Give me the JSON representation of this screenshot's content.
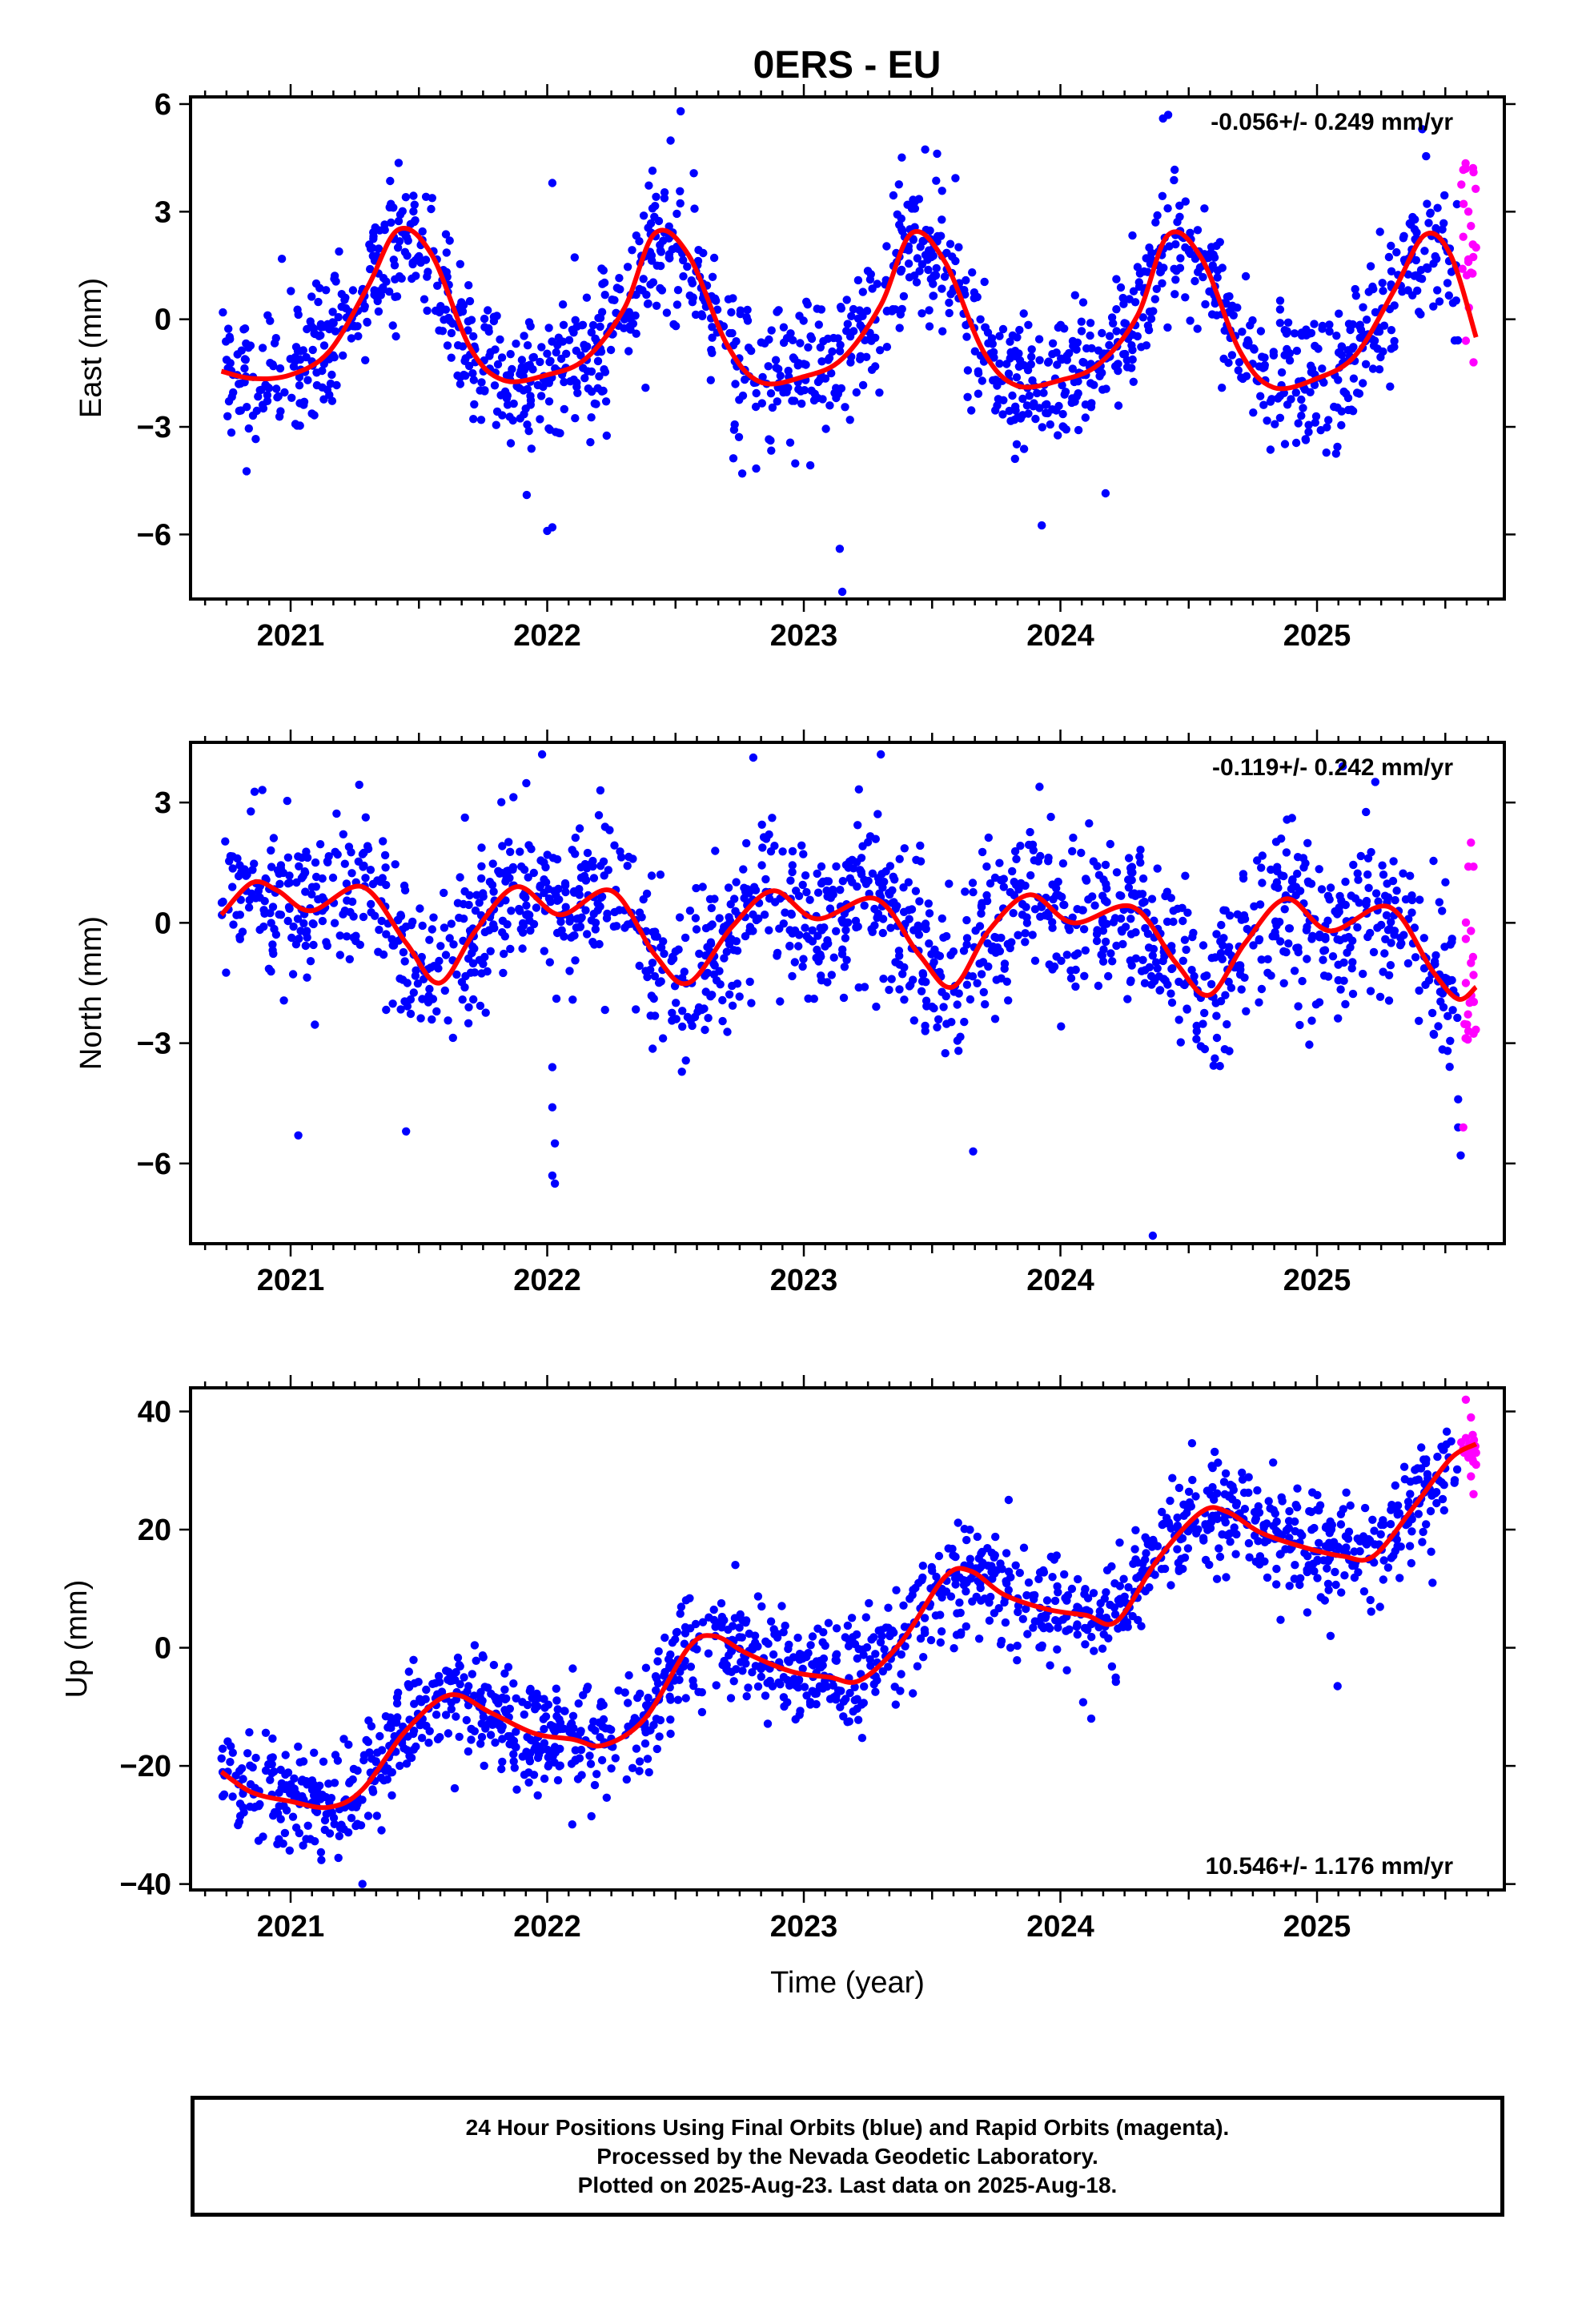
{
  "title": "0ERS - EU",
  "footer": {
    "line1": "24 Hour Positions Using Final Orbits (blue) and Rapid Orbits (magenta).",
    "line2": "Processed by the Nevada Geodetic Laboratory.",
    "line3": "Plotted on 2025-Aug-23. Last data on 2025-Aug-18."
  },
  "colors": {
    "final": "#0000ff",
    "rapid": "#ff00ff",
    "fit": "#ff0000",
    "axis": "#000000"
  },
  "chart_data": [
    {
      "type": "scatter",
      "title": "0ERS - EU",
      "ylabel": "East (mm)",
      "xlabel": "",
      "xlim": [
        2020.61,
        2025.73
      ],
      "ylim": [
        -7.8,
        6.2
      ],
      "xticks": [
        2021,
        2022,
        2023,
        2024,
        2025
      ],
      "yticks": [
        -6,
        -3,
        0,
        3,
        6
      ],
      "velocity_label": "-0.056+/- 0.249 mm/yr",
      "velocity_position": "top-right",
      "grid": false,
      "fit": {
        "name": "",
        "color": "#ff0000",
        "x": [
          2020.73,
          2020.85,
          2021.0,
          2021.15,
          2021.3,
          2021.42,
          2021.55,
          2021.7,
          2021.83,
          2022.0,
          2022.15,
          2022.3,
          2022.42,
          2022.55,
          2022.7,
          2022.83,
          2023.0,
          2023.15,
          2023.3,
          2023.42,
          2023.55,
          2023.7,
          2023.83,
          2024.0,
          2024.15,
          2024.3,
          2024.42,
          2024.55,
          2024.7,
          2024.83,
          2025.0,
          2025.15,
          2025.3,
          2025.42,
          2025.52,
          2025.62
        ],
        "y": [
          -1.45,
          -1.65,
          -1.55,
          -0.9,
          0.9,
          2.5,
          1.8,
          -0.8,
          -1.7,
          -1.55,
          -1.1,
          0.3,
          2.4,
          1.8,
          -0.7,
          -1.75,
          -1.6,
          -1.1,
          0.4,
          2.4,
          1.6,
          -0.9,
          -1.85,
          -1.7,
          -1.25,
          0.1,
          2.35,
          1.7,
          -0.9,
          -1.9,
          -1.65,
          -1.0,
          0.8,
          2.35,
          1.8,
          -0.5
        ]
      },
      "series": [
        {
          "name": "",
          "color": "#0000ff",
          "n": 1500,
          "x_range": [
            2020.73,
            2025.55
          ],
          "scatter_sd": 0.95,
          "outliers": [
            [
              2022.0,
              -5.9
            ],
            [
              2022.02,
              -5.8
            ],
            [
              2023.14,
              -6.4
            ],
            [
              2023.15,
              -7.6
            ],
            [
              2022.52,
              5.8
            ],
            [
              2024.4,
              5.6
            ],
            [
              2025.41,
              5.3
            ],
            [
              2022.02,
              3.8
            ],
            [
              2024.42,
              5.7
            ],
            [
              2021.92,
              -4.9
            ],
            [
              2022.76,
              -4.3
            ]
          ]
        },
        {
          "name": "",
          "color": "#ff00ff",
          "n": 24,
          "x_range": [
            2025.56,
            2025.62
          ],
          "points": [
            [
              2025.58,
              4.2
            ],
            [
              2025.61,
              4.1
            ],
            [
              2025.59,
              3.0
            ],
            [
              2025.6,
              2.6
            ],
            [
              2025.57,
              2.3
            ],
            [
              2025.62,
              2.0
            ],
            [
              2025.59,
              1.6
            ],
            [
              2025.6,
              1.3
            ],
            [
              2025.61,
              -1.2
            ],
            [
              2025.58,
              -0.6
            ]
          ]
        }
      ]
    },
    {
      "type": "scatter",
      "ylabel": "North (mm)",
      "xlabel": "",
      "xlim": [
        2020.61,
        2025.73
      ],
      "ylim": [
        -8.0,
        4.5
      ],
      "xticks": [
        2021,
        2022,
        2023,
        2024,
        2025
      ],
      "yticks": [
        -6,
        -3,
        0,
        3
      ],
      "velocity_label": "-0.119+/- 0.242 mm/yr",
      "velocity_position": "top-right",
      "grid": false,
      "fit": {
        "name": "",
        "color": "#ff0000",
        "x": [
          2020.73,
          2020.85,
          2020.95,
          2021.08,
          2021.28,
          2021.45,
          2021.58,
          2021.72,
          2021.88,
          2022.05,
          2022.25,
          2022.42,
          2022.55,
          2022.72,
          2022.88,
          2023.05,
          2023.28,
          2023.45,
          2023.58,
          2023.72,
          2023.88,
          2024.05,
          2024.28,
          2024.45,
          2024.58,
          2024.72,
          2024.88,
          2025.05,
          2025.28,
          2025.45,
          2025.55,
          2025.62
        ],
        "y": [
          0.2,
          1.0,
          0.8,
          0.3,
          0.9,
          -0.5,
          -1.5,
          -0.2,
          0.9,
          0.2,
          0.8,
          -0.8,
          -1.5,
          -0.1,
          0.8,
          0.1,
          0.6,
          -0.8,
          -1.6,
          -0.2,
          0.7,
          0.0,
          0.4,
          -1.0,
          -1.8,
          -0.5,
          0.6,
          -0.2,
          0.4,
          -1.2,
          -1.9,
          -1.6
        ]
      },
      "series": [
        {
          "name": "",
          "color": "#0000ff",
          "n": 1500,
          "x_range": [
            2020.73,
            2025.55
          ],
          "scatter_sd": 1.0,
          "outliers": [
            [
              2021.03,
              -5.3
            ],
            [
              2021.45,
              -5.2
            ],
            [
              2022.02,
              -3.6
            ],
            [
              2022.02,
              -4.6
            ],
            [
              2022.03,
              -5.5
            ],
            [
              2022.02,
              -6.3
            ],
            [
              2022.03,
              -6.5
            ],
            [
              2021.98,
              4.2
            ],
            [
              2023.3,
              4.2
            ],
            [
              2023.66,
              -5.7
            ],
            [
              2024.36,
              -7.8
            ],
            [
              2025.55,
              -4.4
            ],
            [
              2025.55,
              -5.1
            ],
            [
              2025.56,
              -5.8
            ],
            [
              2025.1,
              3.9
            ]
          ]
        },
        {
          "name": "",
          "color": "#ff00ff",
          "n": 22,
          "x_range": [
            2025.56,
            2025.62
          ],
          "points": [
            [
              2025.6,
              2.0
            ],
            [
              2025.61,
              1.4
            ],
            [
              2025.59,
              1.4
            ],
            [
              2025.6,
              -0.2
            ],
            [
              2025.58,
              -0.4
            ],
            [
              2025.6,
              -1.0
            ],
            [
              2025.61,
              -1.3
            ],
            [
              2025.58,
              -1.5
            ],
            [
              2025.59,
              -2.7
            ],
            [
              2025.57,
              -5.1
            ]
          ]
        }
      ]
    },
    {
      "type": "scatter",
      "ylabel": "Up (mm)",
      "xlabel": "Time (year)",
      "xlim": [
        2020.61,
        2025.73
      ],
      "ylim": [
        -41,
        44
      ],
      "xticks": [
        2021,
        2022,
        2023,
        2024,
        2025
      ],
      "yticks": [
        -40,
        -20,
        0,
        20,
        40
      ],
      "velocity_label": "10.546+/- 1.176 mm/yr",
      "velocity_position": "bottom-right",
      "grid": false,
      "fit": {
        "name": "",
        "color": "#ff0000",
        "x": [
          2020.73,
          2020.85,
          2021.0,
          2021.15,
          2021.28,
          2021.45,
          2021.62,
          2021.78,
          2021.95,
          2022.1,
          2022.22,
          2022.38,
          2022.55,
          2022.65,
          2022.78,
          2022.95,
          2023.1,
          2023.22,
          2023.38,
          2023.55,
          2023.65,
          2023.78,
          2023.95,
          2024.1,
          2024.22,
          2024.38,
          2024.55,
          2024.65,
          2024.78,
          2024.95,
          2025.1,
          2025.22,
          2025.38,
          2025.52,
          2025.62
        ],
        "y": [
          -21,
          -24.5,
          -26,
          -27,
          -24,
          -14,
          -8,
          -11,
          -14.5,
          -15.5,
          -16.5,
          -12,
          0,
          2,
          -1,
          -4,
          -5,
          -5.5,
          1,
          12,
          13,
          9,
          6.5,
          5.5,
          4.5,
          15,
          23,
          23,
          19.5,
          17,
          15.5,
          15.5,
          24,
          32,
          34.5
        ]
      },
      "series": [
        {
          "name": "",
          "color": "#0000ff",
          "n": 1500,
          "x_range": [
            2020.73,
            2025.55
          ],
          "scatter_sd": 4.5,
          "outliers": [
            [
              2021.28,
              -40
            ],
            [
              2022.68,
              4.0
            ],
            [
              2024.12,
              -12
            ],
            [
              2025.08,
              -6.5
            ],
            [
              2025.45,
              11
            ]
          ]
        },
        {
          "name": "",
          "color": "#ff00ff",
          "n": 24,
          "x_range": [
            2025.56,
            2025.62
          ],
          "points": [
            [
              2025.58,
              42
            ],
            [
              2025.6,
              39
            ],
            [
              2025.61,
              35
            ],
            [
              2025.59,
              33
            ],
            [
              2025.62,
              31
            ],
            [
              2025.6,
              29
            ],
            [
              2025.61,
              26
            ],
            [
              2025.58,
              35.5
            ],
            [
              2025.62,
              33
            ]
          ]
        }
      ]
    }
  ]
}
